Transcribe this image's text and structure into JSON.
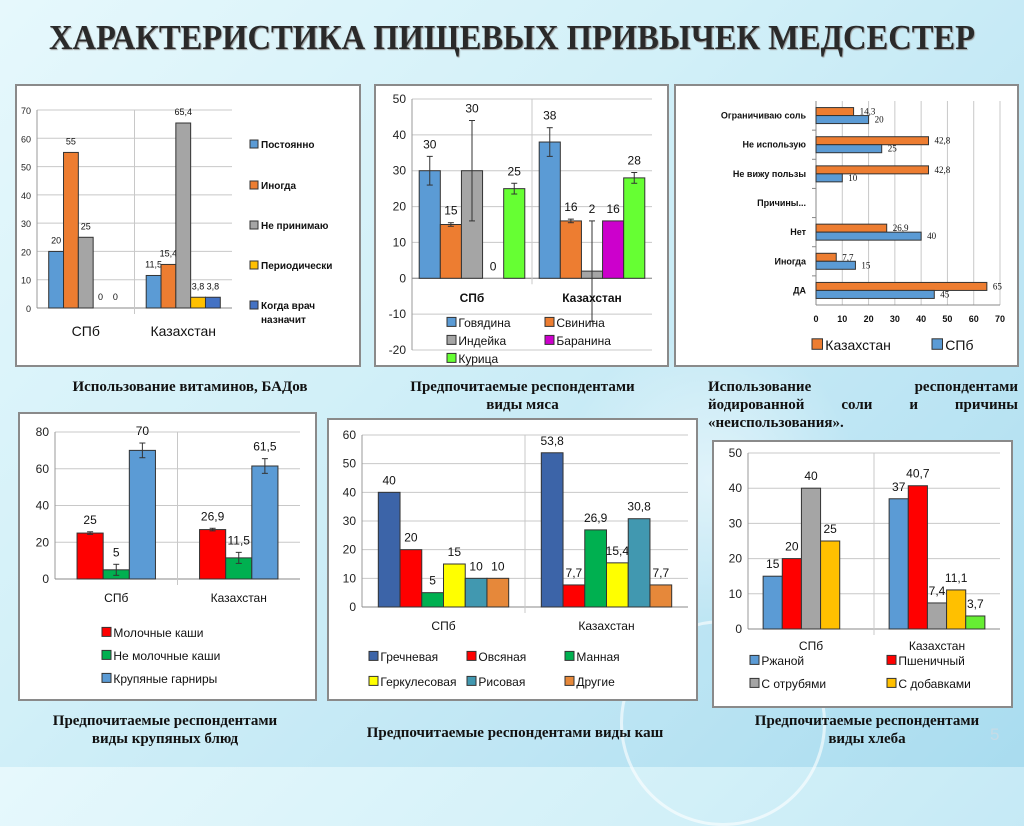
{
  "title": "ХАРАКТЕРИСТИКА ПИЩЕВЫХ   ПРИВЫЧЕК  МЕДСЕСТЕР",
  "page_number": "5",
  "captions": {
    "c1": "Использование  витаминов, БАДов",
    "c2_line1": "Предпочитаемые респондентами",
    "c2_line2": "виды мяса",
    "c3_line1": "Использование респондентами",
    "c3_line2": "йодированной соли и причины",
    "c3_line3": "«неиспользования».",
    "c4_line1": "Предпочитаемые респондентами",
    "c4_line2": "виды крупяных блюд",
    "c5": "Предпочитаемые респондентами виды  каш",
    "c6_line1": "Предпочитаемые респондентами",
    "c6_line2": "виды хлеба"
  },
  "chart_data": [
    {
      "id": "vitamins",
      "type": "bar",
      "categories": [
        "СПб",
        "Казахстан"
      ],
      "series": [
        {
          "name": "Постоянно",
          "color": "#5b9bd5",
          "values": [
            20,
            11.5
          ],
          "labels": [
            "20",
            "11,5"
          ]
        },
        {
          "name": "Иногда",
          "color": "#ed7d31",
          "values": [
            55,
            15.4
          ],
          "labels": [
            "55",
            "15,4"
          ]
        },
        {
          "name": "Не принимаю",
          "color": "#a5a5a5",
          "values": [
            25,
            65.4
          ],
          "labels": [
            "25",
            "65,4"
          ]
        },
        {
          "name": "Периодически",
          "color": "#ffc000",
          "values": [
            0,
            3.8
          ],
          "labels": [
            "0",
            "3,8"
          ]
        },
        {
          "name": "Когда врач назначит",
          "color": "#4472c4",
          "values": [
            0,
            3.8
          ],
          "labels": [
            "0",
            "3,8"
          ]
        }
      ],
      "yticks": [
        "0",
        "10",
        "20",
        "30",
        "40",
        "50",
        "60",
        "70"
      ],
      "ylim": [
        0,
        70
      ],
      "legend": "right",
      "grid": true
    },
    {
      "id": "meat",
      "type": "bar",
      "categories": [
        "СПб",
        "Казахстан"
      ],
      "series": [
        {
          "name": "Говядина",
          "color": "#5b9bd5",
          "values": [
            30,
            38
          ],
          "labels": [
            "30",
            "38"
          ],
          "err": [
            4,
            4
          ]
        },
        {
          "name": "Свинина",
          "color": "#ed7d31",
          "values": [
            15,
            16
          ],
          "labels": [
            "15",
            "16"
          ],
          "err": [
            0.5,
            0.5
          ]
        },
        {
          "name": "Индейка",
          "color": "#a5a5a5",
          "values": [
            30,
            2
          ],
          "labels": [
            "30",
            "2"
          ],
          "err": [
            14,
            14
          ]
        },
        {
          "name": "Баранина",
          "color": "#cc00cc",
          "values": [
            0,
            16
          ],
          "labels": [
            "0",
            "16"
          ],
          "err": [
            0,
            0
          ]
        },
        {
          "name": "Курица",
          "color": "#66ff33",
          "values": [
            25,
            28
          ],
          "labels": [
            "25",
            "28"
          ],
          "err": [
            1.5,
            1.5
          ]
        }
      ],
      "yticks": [
        "-20",
        "-10",
        "0",
        "10",
        "20",
        "30",
        "40",
        "50"
      ],
      "ylim": [
        -20,
        50
      ],
      "legend": "bottom",
      "grid": true
    },
    {
      "id": "salt",
      "type": "bar",
      "orientation": "horizontal",
      "categories": [
        "Ограничиваю соль",
        "Не использую",
        "Не вижу пользы",
        "Причины...",
        "Нет",
        "Иногда",
        "ДА"
      ],
      "series": [
        {
          "name": "Казахстан",
          "color": "#ed7d31",
          "values": [
            14.3,
            42.8,
            42.8,
            null,
            26.9,
            7.7,
            65
          ],
          "labels": [
            "14,3",
            "42,8",
            "42,8",
            "",
            "26,9",
            "7,7",
            "65"
          ]
        },
        {
          "name": "СПб",
          "color": "#5b9bd5",
          "values": [
            20,
            25,
            10,
            null,
            40,
            15,
            45
          ],
          "labels": [
            "20",
            "25",
            "10",
            "",
            "40",
            "15",
            "45"
          ]
        }
      ],
      "xticks": [
        "0",
        "10",
        "20",
        "30",
        "40",
        "50",
        "60",
        "70"
      ],
      "xlim": [
        0,
        70
      ],
      "legend": "bottom",
      "grid": true
    },
    {
      "id": "cereal_dishes",
      "type": "bar",
      "categories": [
        "СПб",
        "Казахстан"
      ],
      "series": [
        {
          "name": "Молочные каши",
          "color": "#ff0000",
          "values": [
            25,
            26.9
          ],
          "labels": [
            "25",
            "26,9"
          ],
          "err": [
            0.7,
            0.7
          ]
        },
        {
          "name": "Не молочные каши",
          "color": "#00b050",
          "values": [
            5,
            11.5
          ],
          "labels": [
            "5",
            "11,5"
          ],
          "err": [
            3,
            3
          ]
        },
        {
          "name": "Крупяные гарниры",
          "color": "#5b9bd5",
          "values": [
            70,
            61.5
          ],
          "labels": [
            "70",
            "61,5"
          ],
          "err": [
            4,
            4
          ]
        }
      ],
      "yticks": [
        "0",
        "20",
        "40",
        "60",
        "80"
      ],
      "ylim": [
        0,
        80
      ],
      "legend": "bottom",
      "grid": true
    },
    {
      "id": "porridge",
      "type": "bar",
      "categories": [
        "СПб",
        "Казахстан"
      ],
      "series": [
        {
          "name": "Гречневая",
          "color": "#3c64a8",
          "values": [
            40,
            53.8
          ],
          "labels": [
            "40",
            "53,8"
          ]
        },
        {
          "name": "Овсяная",
          "color": "#ff0000",
          "values": [
            20,
            7.7
          ],
          "labels": [
            "20",
            "7,7"
          ]
        },
        {
          "name": "Манная",
          "color": "#00b050",
          "values": [
            5,
            26.9
          ],
          "labels": [
            "5",
            "26,9"
          ]
        },
        {
          "name": "Геркулесовая",
          "color": "#ffff00",
          "values": [
            15,
            15.4
          ],
          "labels": [
            "15",
            "15,4"
          ]
        },
        {
          "name": "Рисовая",
          "color": "#4198b0",
          "values": [
            10,
            30.8
          ],
          "labels": [
            "10",
            "30,8"
          ]
        },
        {
          "name": "Другие",
          "color": "#e6883a",
          "values": [
            10,
            7.7
          ],
          "labels": [
            "10",
            "7,7"
          ]
        }
      ],
      "yticks": [
        "0",
        "10",
        "20",
        "30",
        "40",
        "50",
        "60"
      ],
      "ylim": [
        0,
        60
      ],
      "legend": "bottom",
      "grid": true
    },
    {
      "id": "bread",
      "type": "bar",
      "categories": [
        "СПб",
        "Казахстан"
      ],
      "series": [
        {
          "name": "Ржаной",
          "color": "#5b9bd5",
          "values": [
            15,
            37
          ],
          "labels": [
            "15",
            "37"
          ]
        },
        {
          "name": "Пшеничный",
          "color": "#ff0000",
          "values": [
            20,
            40.7
          ],
          "labels": [
            "20",
            "40,7"
          ]
        },
        {
          "name": "С отрубями",
          "color": "#a5a5a5",
          "values": [
            40,
            7.4
          ],
          "labels": [
            "40",
            "7,4"
          ]
        },
        {
          "name": "С добавками",
          "color": "#ffc000",
          "values": [
            25,
            11.1
          ],
          "labels": [
            "25",
            "11,1"
          ]
        },
        {
          "name": "",
          "color": "#66ee33",
          "values": [
            null,
            3.7
          ],
          "labels": [
            "",
            "3,7"
          ]
        }
      ],
      "yticks": [
        "0",
        "10",
        "20",
        "30",
        "40",
        "50"
      ],
      "ylim": [
        0,
        50
      ],
      "legend": "bottom",
      "grid": true
    }
  ]
}
